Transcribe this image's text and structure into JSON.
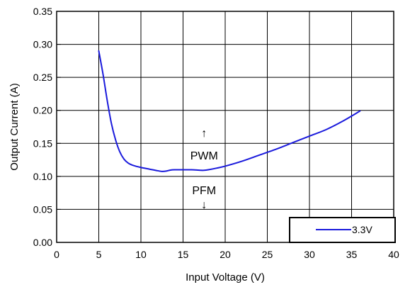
{
  "chart_data": {
    "type": "line",
    "xlabel": "Input Voltage (V)",
    "ylabel": "Output Current (A)",
    "xlim": [
      0,
      40
    ],
    "ylim": [
      0,
      0.35
    ],
    "xticks": [
      0,
      5,
      10,
      15,
      20,
      25,
      30,
      35,
      40
    ],
    "yticks": [
      0.0,
      0.05,
      0.1,
      0.15,
      0.2,
      0.25,
      0.3,
      0.35
    ],
    "xtick_labels": [
      "0",
      "5",
      "10",
      "15",
      "20",
      "25",
      "30",
      "35",
      "40"
    ],
    "ytick_labels": [
      "0.00",
      "0.05",
      "0.10",
      "0.15",
      "0.20",
      "0.25",
      "0.30",
      "0.35"
    ],
    "grid": true,
    "legend_position": "bottom-right",
    "series": [
      {
        "name": "3.3V",
        "color": "#1a1adc",
        "x": [
          5,
          5.5,
          6,
          6.5,
          7,
          7.5,
          8,
          8.5,
          9,
          10,
          11,
          12,
          12.5,
          13,
          13.5,
          14,
          15,
          16,
          17,
          17.5,
          18,
          19,
          20,
          22,
          24,
          26,
          28,
          30,
          32,
          34,
          36
        ],
        "y": [
          0.29,
          0.255,
          0.215,
          0.18,
          0.155,
          0.137,
          0.126,
          0.12,
          0.117,
          0.1135,
          0.111,
          0.1085,
          0.1075,
          0.108,
          0.1095,
          0.11,
          0.11,
          0.11,
          0.1093,
          0.1092,
          0.11,
          0.1125,
          0.1155,
          0.123,
          0.132,
          0.141,
          0.151,
          0.161,
          0.171,
          0.184,
          0.199
        ]
      }
    ],
    "annotations": [
      {
        "text": "PWM",
        "arrow": "↑",
        "x": 17.5,
        "y": 0.125
      },
      {
        "text": "PFM",
        "arrow": "↓",
        "x": 17.5,
        "y": 0.092
      }
    ]
  }
}
